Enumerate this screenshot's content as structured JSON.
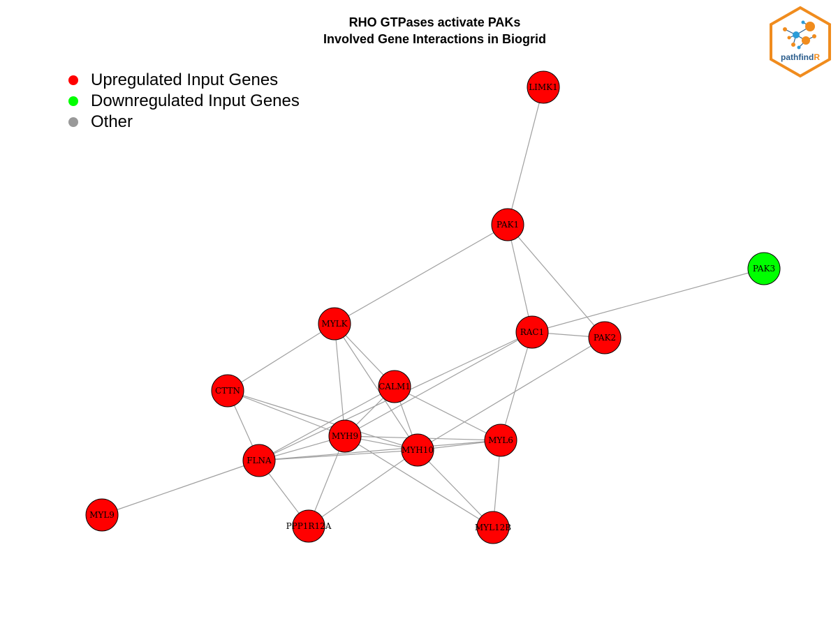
{
  "title": {
    "line1": "RHO GTPases activate PAKs",
    "line2": "Involved Gene Interactions in Biogrid"
  },
  "legend": [
    {
      "label": "Upregulated Input Genes",
      "color": "#ff0000"
    },
    {
      "label": "Downregulated Input Genes",
      "color": "#00ff00"
    },
    {
      "label": "Other",
      "color": "#999999"
    }
  ],
  "colors": {
    "up": "#ff0000",
    "down": "#00ff00",
    "edge": "#a0a0a0",
    "logo_orange": "#f08c1e",
    "logo_blue": "#2b5d8c"
  },
  "logo": {
    "text_main": "pathfind",
    "text_accent": "R"
  },
  "nodes": [
    {
      "id": "LIMK1",
      "status": "up"
    },
    {
      "id": "PAK1",
      "status": "up"
    },
    {
      "id": "PAK3",
      "status": "down"
    },
    {
      "id": "MYLK",
      "status": "up"
    },
    {
      "id": "RAC1",
      "status": "up"
    },
    {
      "id": "PAK2",
      "status": "up"
    },
    {
      "id": "CTTN",
      "status": "up"
    },
    {
      "id": "CALM1",
      "status": "up"
    },
    {
      "id": "MYH9",
      "status": "up"
    },
    {
      "id": "MYH10",
      "status": "up"
    },
    {
      "id": "MYL6",
      "status": "up"
    },
    {
      "id": "FLNA",
      "status": "up"
    },
    {
      "id": "MYL9",
      "status": "up"
    },
    {
      "id": "PPP1R12A",
      "status": "up"
    },
    {
      "id": "MYL12B",
      "status": "up"
    }
  ],
  "edges": [
    [
      "LIMK1",
      "PAK1"
    ],
    [
      "PAK1",
      "MYLK"
    ],
    [
      "PAK1",
      "RAC1"
    ],
    [
      "PAK1",
      "PAK2"
    ],
    [
      "PAK3",
      "RAC1"
    ],
    [
      "RAC1",
      "PAK2"
    ],
    [
      "RAC1",
      "FLNA"
    ],
    [
      "RAC1",
      "MYH9"
    ],
    [
      "RAC1",
      "MYL6"
    ],
    [
      "PAK2",
      "MYH10"
    ],
    [
      "MYLK",
      "CTTN"
    ],
    [
      "MYLK",
      "CALM1"
    ],
    [
      "MYLK",
      "MYH9"
    ],
    [
      "MYLK",
      "MYH10"
    ],
    [
      "CTTN",
      "FLNA"
    ],
    [
      "CTTN",
      "MYH9"
    ],
    [
      "CTTN",
      "MYH10"
    ],
    [
      "CALM1",
      "FLNA"
    ],
    [
      "CALM1",
      "MYH9"
    ],
    [
      "CALM1",
      "MYH10"
    ],
    [
      "CALM1",
      "MYL6"
    ],
    [
      "MYH9",
      "FLNA"
    ],
    [
      "MYH9",
      "MYH10"
    ],
    [
      "MYH9",
      "MYL6"
    ],
    [
      "MYH9",
      "PPP1R12A"
    ],
    [
      "MYH9",
      "MYL12B"
    ],
    [
      "MYH10",
      "FLNA"
    ],
    [
      "MYH10",
      "MYL6"
    ],
    [
      "MYH10",
      "PPP1R12A"
    ],
    [
      "MYH10",
      "MYL12B"
    ],
    [
      "MYL6",
      "FLNA"
    ],
    [
      "MYL6",
      "MYL12B"
    ],
    [
      "FLNA",
      "MYL9"
    ],
    [
      "FLNA",
      "PPP1R12A"
    ]
  ]
}
